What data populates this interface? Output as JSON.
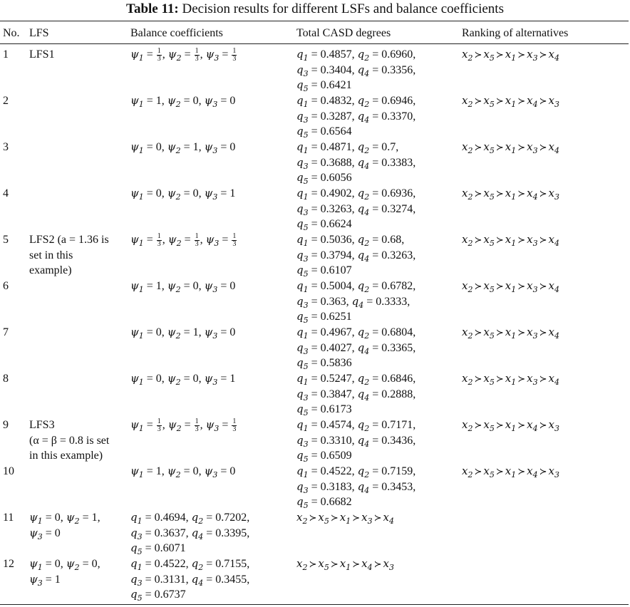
{
  "caption": {
    "label": "Table 11:",
    "text": "Decision results for different LSFs and balance coefficients"
  },
  "headers": {
    "no": "No.",
    "lfs": "LFS",
    "balance": "Balance coefficients",
    "casd": "Total CASD degrees",
    "ranking": "Ranking of alternatives"
  },
  "rows": [
    {
      "no": "1",
      "lfs": [
        "LFS1"
      ],
      "psi": [
        "1/3",
        "1/3",
        "1/3"
      ],
      "q": [
        "0.4857",
        "0.6960",
        "0.3404",
        "0.3356",
        "0.6421"
      ],
      "rank": [
        "2",
        "5",
        "1",
        "3",
        "4"
      ]
    },
    {
      "no": "2",
      "lfs": [],
      "psi": [
        "1",
        "0",
        "0"
      ],
      "q": [
        "0.4832",
        "0.6946",
        "0.3287",
        "0.3370",
        "0.6564"
      ],
      "rank": [
        "2",
        "5",
        "1",
        "4",
        "3"
      ]
    },
    {
      "no": "3",
      "lfs": [],
      "psi": [
        "0",
        "1",
        "0"
      ],
      "q": [
        "0.4871",
        "0.7",
        "0.3688",
        "0.3383",
        "0.6056"
      ],
      "rank": [
        "2",
        "5",
        "1",
        "3",
        "4"
      ]
    },
    {
      "no": "4",
      "lfs": [],
      "psi": [
        "0",
        "0",
        "1"
      ],
      "q": [
        "0.4902",
        "0.6936",
        "0.3263",
        "0.3274",
        "0.6624"
      ],
      "rank": [
        "2",
        "5",
        "1",
        "4",
        "3"
      ]
    },
    {
      "no": "5",
      "lfs": [
        "LFS2 (a = 1.36 is",
        "set in this",
        "example)"
      ],
      "psi": [
        "1/3",
        "1/3",
        "1/3"
      ],
      "q": [
        "0.5036",
        "0.68",
        "0.3794",
        "0.3263",
        "0.6107"
      ],
      "rank": [
        "2",
        "5",
        "1",
        "3",
        "4"
      ]
    },
    {
      "no": "6",
      "lfs": [],
      "psi": [
        "1",
        "0",
        "0"
      ],
      "q": [
        "0.5004",
        "0.6782",
        "0.363",
        "0.3333",
        "0.6251"
      ],
      "rank": [
        "2",
        "5",
        "1",
        "3",
        "4"
      ]
    },
    {
      "no": "7",
      "lfs": [],
      "psi": [
        "0",
        "1",
        "0"
      ],
      "q": [
        "0.4967",
        "0.6804",
        "0.4027",
        "0.3365",
        "0.5836"
      ],
      "rank": [
        "2",
        "5",
        "1",
        "3",
        "4"
      ]
    },
    {
      "no": "8",
      "lfs": [],
      "psi": [
        "0",
        "0",
        "1"
      ],
      "q": [
        "0.5247",
        "0.6846",
        "0.3847",
        "0.2888",
        "0.6173"
      ],
      "rank": [
        "2",
        "5",
        "1",
        "3",
        "4"
      ]
    },
    {
      "no": "9",
      "lfs": [
        "LFS3",
        "(α = β = 0.8 is set",
        "in this example)"
      ],
      "psi": [
        "1/3",
        "1/3",
        "1/3"
      ],
      "q": [
        "0.4574",
        "0.7171",
        "0.3310",
        "0.3436",
        "0.6509"
      ],
      "rank": [
        "2",
        "5",
        "1",
        "4",
        "3"
      ]
    },
    {
      "no": "10",
      "lfs": [],
      "psi": [
        "1",
        "0",
        "0"
      ],
      "q": [
        "0.4522",
        "0.7159",
        "0.3183",
        "0.3453",
        "0.6682"
      ],
      "rank": [
        "2",
        "5",
        "1",
        "4",
        "3"
      ]
    },
    {
      "no": "11",
      "shifted": true,
      "psi": [
        "0",
        "1",
        "0"
      ],
      "q": [
        "0.4694",
        "0.7202",
        "0.3637",
        "0.3395",
        "0.6071"
      ],
      "rank": [
        "2",
        "5",
        "1",
        "3",
        "4"
      ]
    },
    {
      "no": "12",
      "shifted": true,
      "psi": [
        "0",
        "0",
        "1"
      ],
      "q": [
        "0.4522",
        "0.7155",
        "0.3131",
        "0.3455",
        "0.6737"
      ],
      "rank": [
        "2",
        "5",
        "1",
        "4",
        "3"
      ]
    }
  ]
}
